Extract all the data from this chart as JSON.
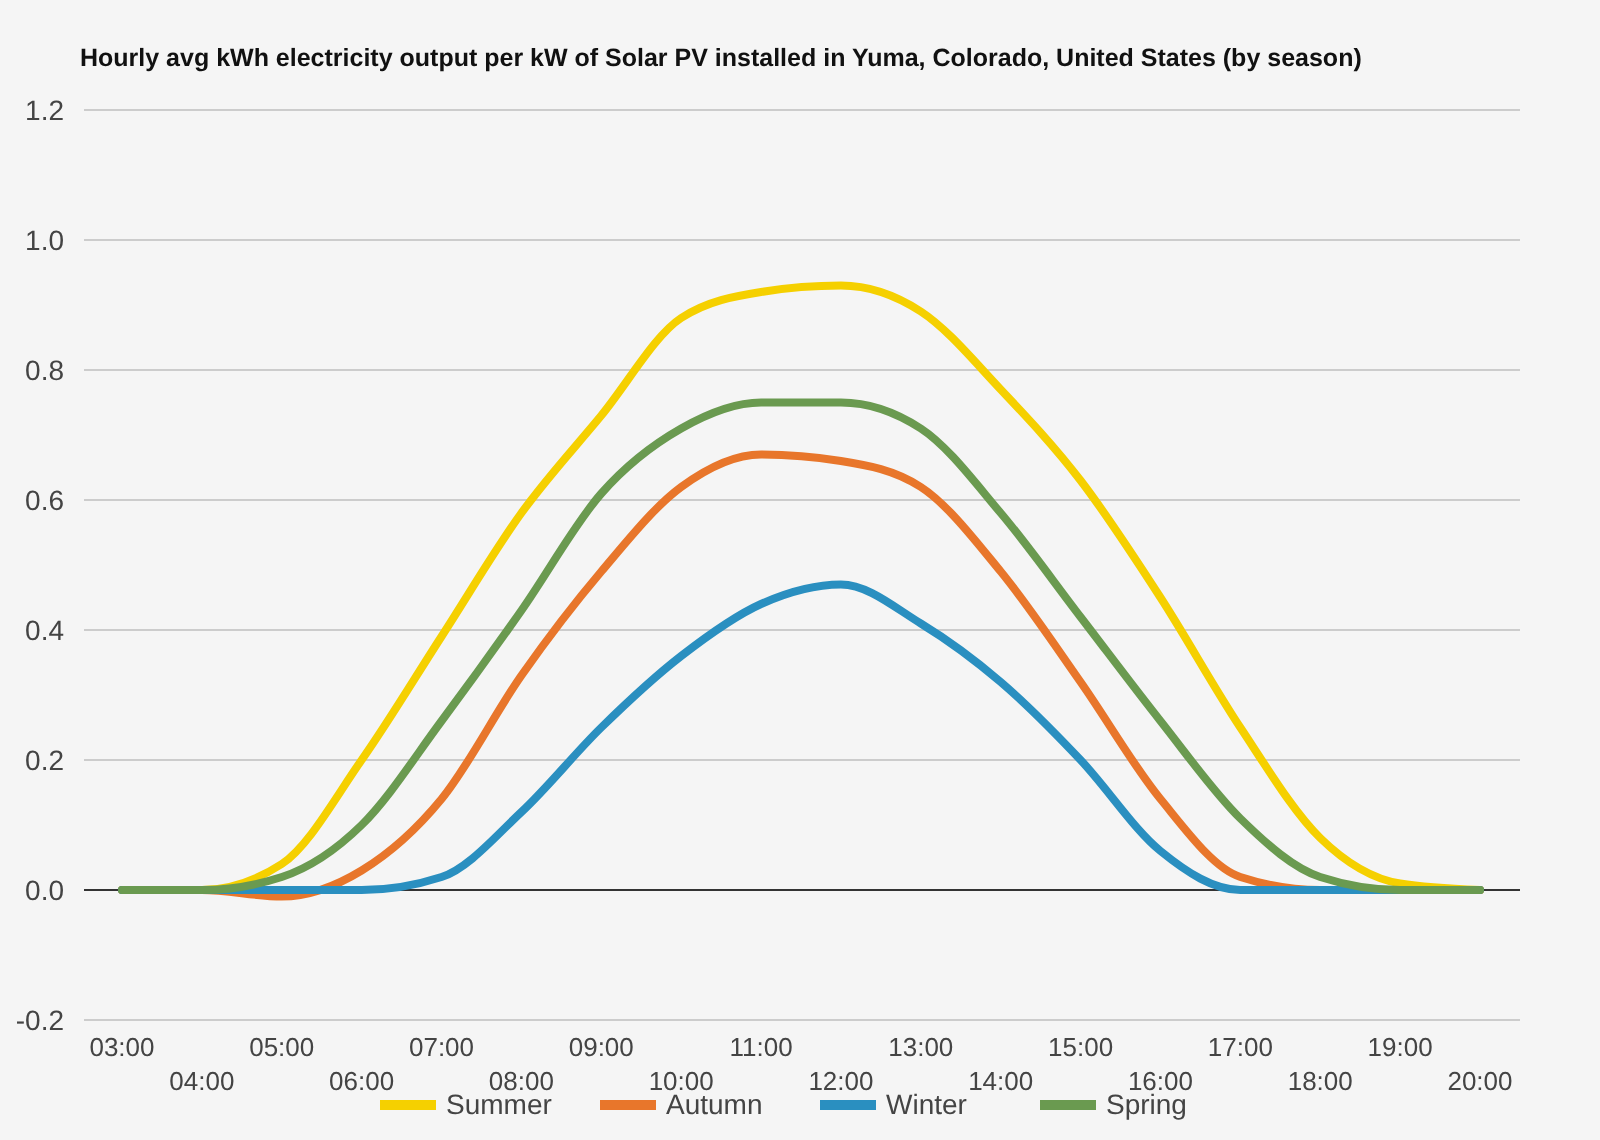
{
  "chart_data": {
    "type": "line",
    "title": "Hourly avg kWh electricity output per kW of Solar PV installed in Yuma, Colorado, United States (by season)",
    "categories": [
      "03:00",
      "04:00",
      "05:00",
      "06:00",
      "07:00",
      "08:00",
      "09:00",
      "10:00",
      "11:00",
      "12:00",
      "13:00",
      "14:00",
      "15:00",
      "16:00",
      "17:00",
      "18:00",
      "19:00",
      "20:00"
    ],
    "series": [
      {
        "name": "Summer",
        "color": "#f5d000",
        "values": [
          0,
          0,
          0.04,
          0.2,
          0.39,
          0.58,
          0.73,
          0.88,
          0.92,
          0.93,
          0.89,
          0.77,
          0.63,
          0.45,
          0.25,
          0.08,
          0.01,
          0
        ]
      },
      {
        "name": "Autumn",
        "color": "#e8762b",
        "values": [
          0,
          0,
          -0.01,
          0.03,
          0.14,
          0.33,
          0.49,
          0.62,
          0.67,
          0.66,
          0.62,
          0.49,
          0.32,
          0.14,
          0.02,
          0,
          0,
          0
        ]
      },
      {
        "name": "Winter",
        "color": "#2a8fc0",
        "values": [
          0,
          0,
          0,
          0,
          0.02,
          0.12,
          0.25,
          0.36,
          0.44,
          0.47,
          0.41,
          0.32,
          0.2,
          0.06,
          0,
          0,
          0,
          0
        ]
      },
      {
        "name": "Spring",
        "color": "#6a9a50",
        "values": [
          0,
          0,
          0.02,
          0.1,
          0.26,
          0.43,
          0.61,
          0.71,
          0.75,
          0.75,
          0.71,
          0.58,
          0.42,
          0.26,
          0.11,
          0.02,
          0,
          0
        ]
      }
    ],
    "ylim": [
      -0.2,
      1.2
    ],
    "yticks": [
      {
        "value": -0.2,
        "label": "-0.2"
      },
      {
        "value": 0,
        "label": "0.0"
      },
      {
        "value": 0.2,
        "label": "0.2"
      },
      {
        "value": 0.4,
        "label": "0.4"
      },
      {
        "value": 0.6,
        "label": "0.6"
      },
      {
        "value": 0.8,
        "label": "0.8"
      },
      {
        "value": 1,
        "label": "1.0"
      },
      {
        "value": 1.2,
        "label": "1.2"
      }
    ],
    "ref_lines": [
      {
        "axis": "y",
        "value": 0,
        "color": "#333333"
      }
    ],
    "grid": "y",
    "legend": "bottom",
    "marker": "none",
    "line_style": "solid"
  }
}
